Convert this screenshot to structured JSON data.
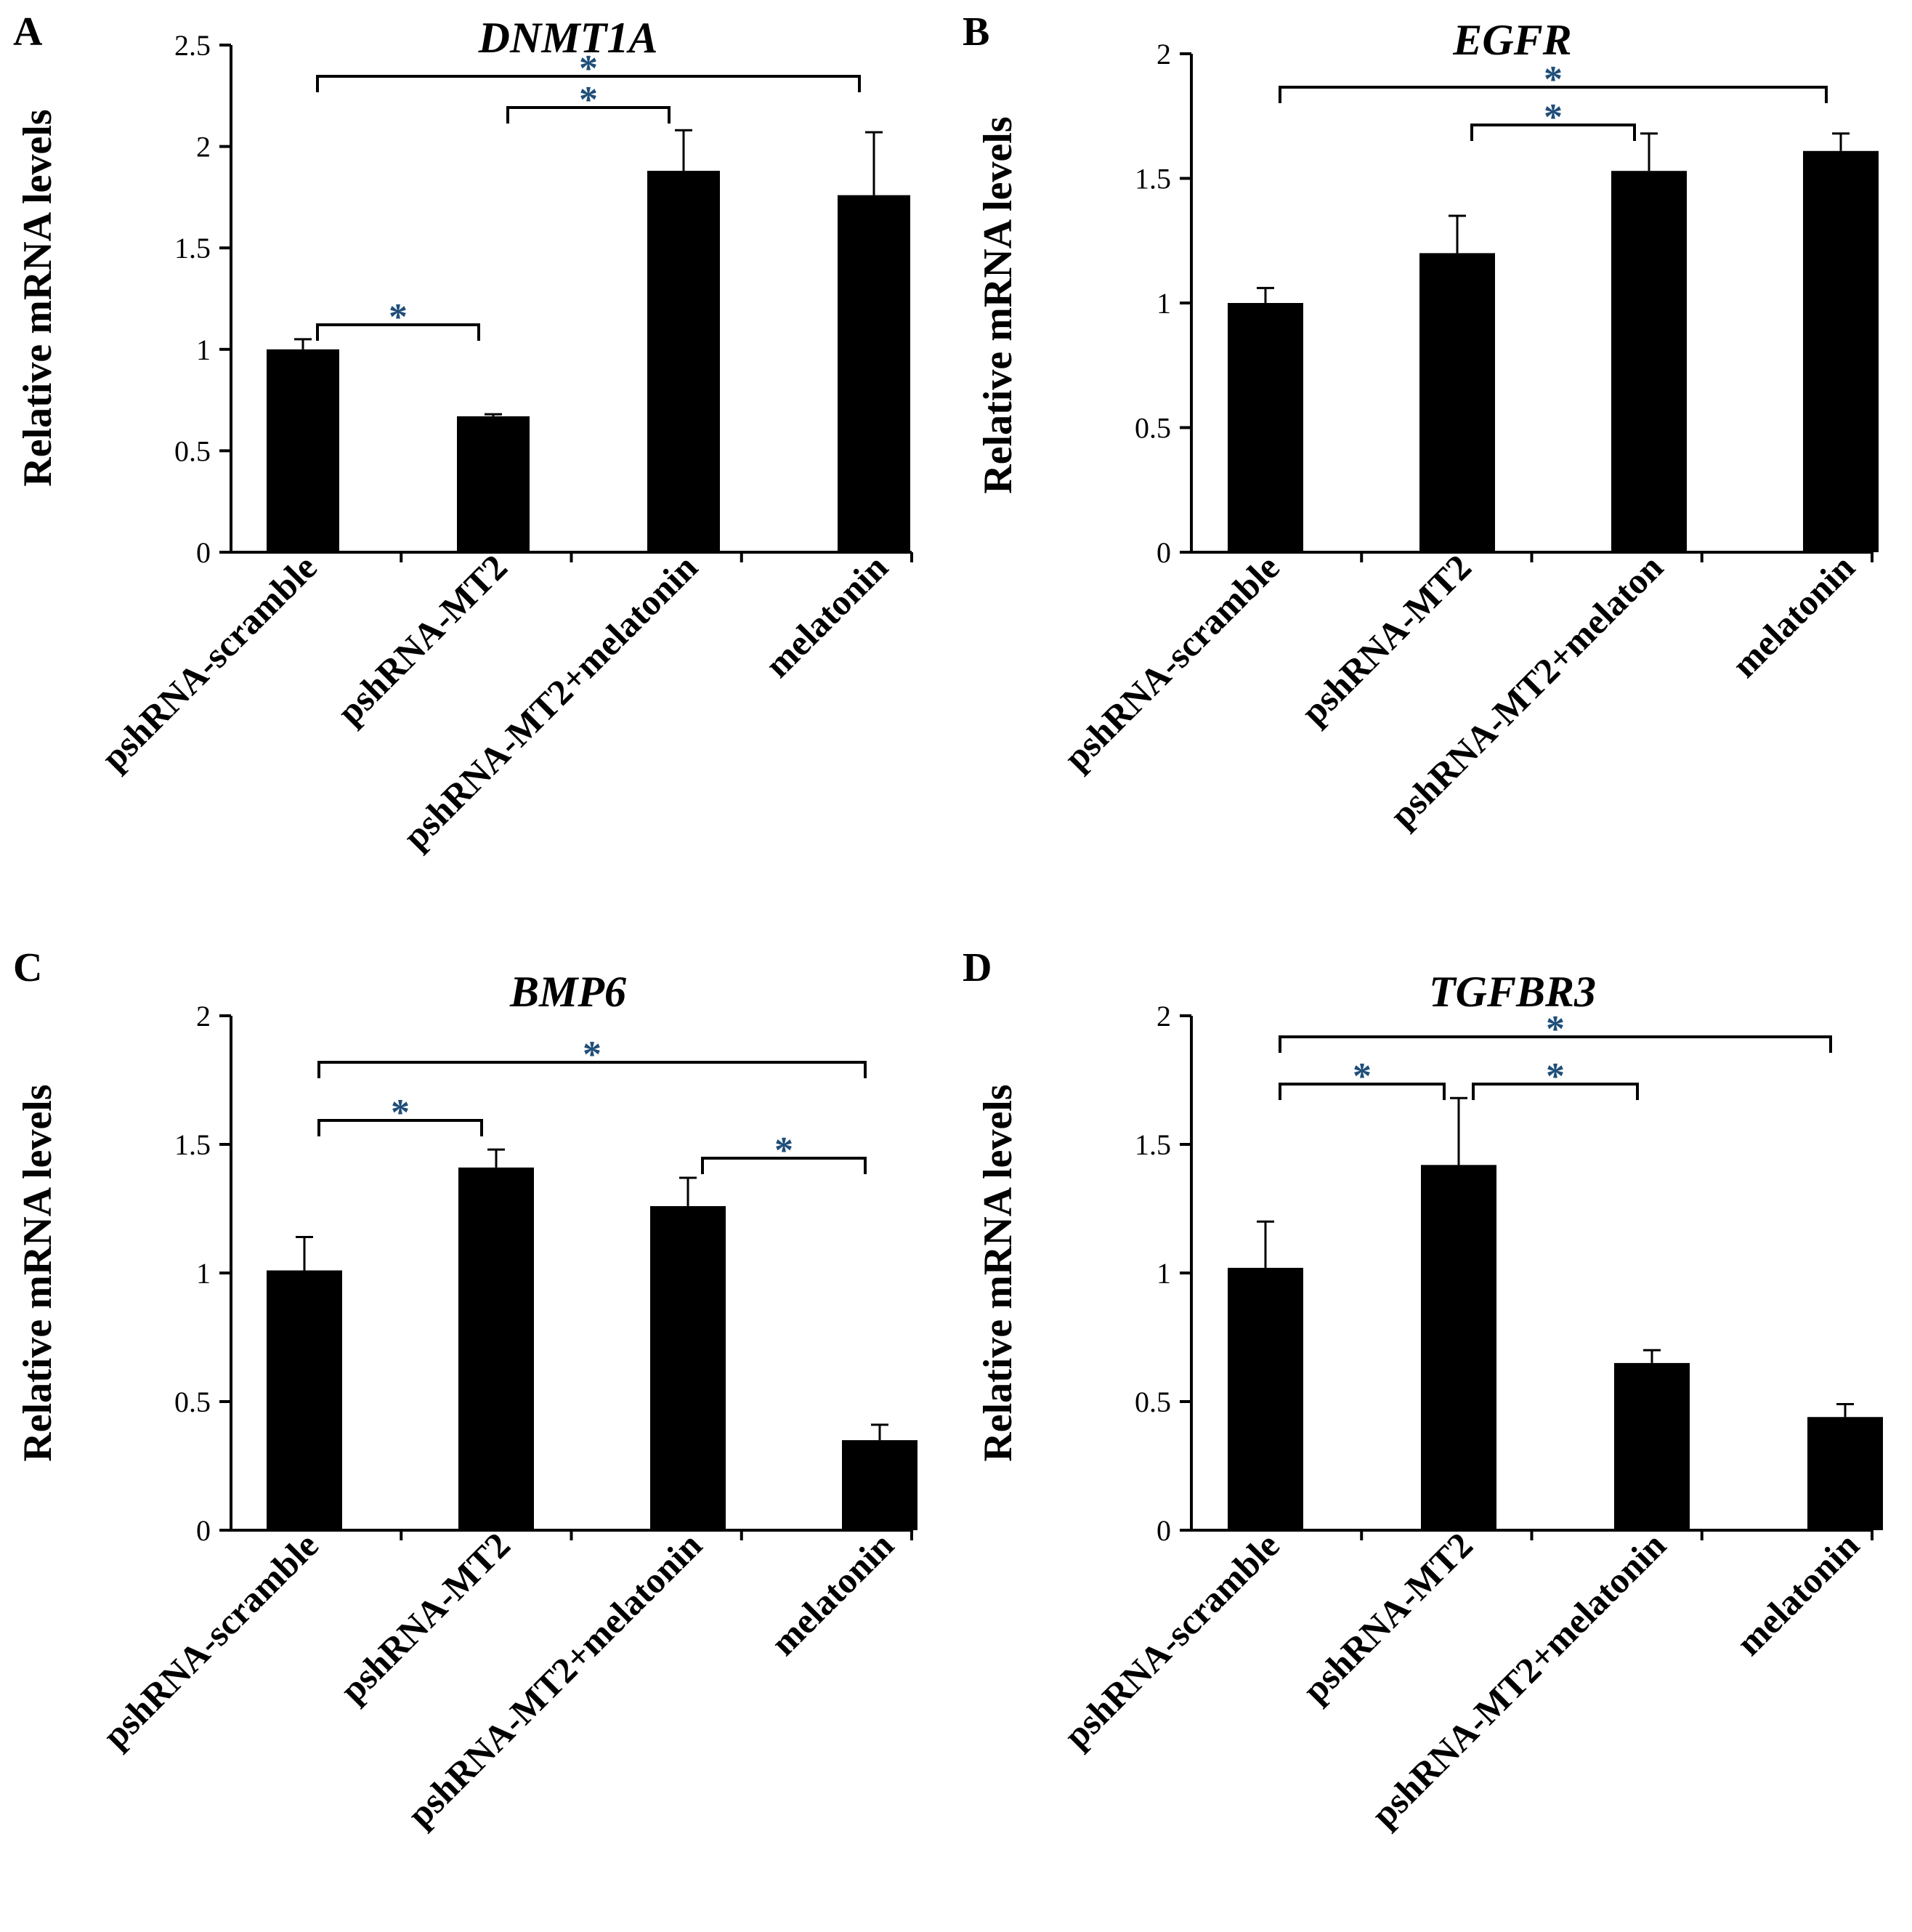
{
  "chart_data": [
    {
      "type": "bar",
      "panel": "A",
      "title": "DNMT1A",
      "ylabel": "Relative mRNA levels",
      "xlabel": "",
      "categories": [
        "pshRNA-scramble",
        "pshRNA-MT2",
        "pshRNA-MT2+melatonin",
        "melatonin"
      ],
      "values": [
        1.0,
        0.67,
        1.88,
        1.76
      ],
      "errors": [
        0.05,
        0.01,
        0.2,
        0.31
      ],
      "ylim": [
        0,
        2.5
      ],
      "yticks": [
        0,
        0.5,
        1,
        1.5,
        2,
        2.5
      ],
      "ytick_labels": [
        "0",
        "0.5",
        "1",
        "1.5",
        "2",
        "2.5"
      ],
      "significance": [
        {
          "from": 0,
          "to": 1,
          "label": "*"
        },
        {
          "from": 1,
          "to": 2,
          "label": "*"
        },
        {
          "from": 0,
          "to": 3,
          "label": "*"
        }
      ]
    },
    {
      "type": "bar",
      "panel": "B",
      "title": "EGFR",
      "ylabel": "Relative mRNA levels",
      "xlabel": "",
      "categories": [
        "pshRNA-scramble",
        "pshRNA-MT2",
        "pshRNA-MT2+melaton",
        "melatonin"
      ],
      "values": [
        1.0,
        1.2,
        1.53,
        1.61
      ],
      "errors": [
        0.06,
        0.15,
        0.15,
        0.07
      ],
      "ylim": [
        0,
        2
      ],
      "yticks": [
        0,
        0.5,
        1,
        1.5,
        2
      ],
      "ytick_labels": [
        "0",
        "0.5",
        "1",
        "1.5",
        "2"
      ],
      "significance": [
        {
          "from": 1,
          "to": 2,
          "label": "*"
        },
        {
          "from": 0,
          "to": 3,
          "label": "*"
        }
      ]
    },
    {
      "type": "bar",
      "panel": "C",
      "title": "BMP6",
      "ylabel": "Relative mRNA levels",
      "xlabel": "",
      "categories": [
        "pshRNA-scramble",
        "pshRNA-MT2",
        "pshRNA-MT2+melatonin",
        "melatonin"
      ],
      "values": [
        1.01,
        1.41,
        1.26,
        0.35
      ],
      "errors": [
        0.13,
        0.07,
        0.11,
        0.06
      ],
      "ylim": [
        0,
        2
      ],
      "yticks": [
        0,
        0.5,
        1,
        1.5,
        2
      ],
      "ytick_labels": [
        "0",
        "0.5",
        "1",
        "1.5",
        "2"
      ],
      "significance": [
        {
          "from": 0,
          "to": 1,
          "label": "*"
        },
        {
          "from": 2,
          "to": 3,
          "label": "*"
        },
        {
          "from": 0,
          "to": 3,
          "label": "*"
        }
      ]
    },
    {
      "type": "bar",
      "panel": "D",
      "title": "TGFBR3",
      "ylabel": "Relative mRNA levels",
      "xlabel": "",
      "categories": [
        "pshRNA-scramble",
        "pshRNA-MT2",
        "pshRNA-MT2+melatonin",
        "melatonin"
      ],
      "values": [
        1.02,
        1.42,
        0.65,
        0.44
      ],
      "errors": [
        0.18,
        0.26,
        0.05,
        0.05
      ],
      "ylim": [
        0,
        2
      ],
      "yticks": [
        0,
        0.5,
        1,
        1.5,
        2
      ],
      "ytick_labels": [
        "0",
        "0.5",
        "1",
        "1.5",
        "2"
      ],
      "significance": [
        {
          "from": 0,
          "to": 1,
          "label": "*"
        },
        {
          "from": 1,
          "to": 2,
          "label": "*"
        },
        {
          "from": 0,
          "to": 3,
          "label": "*"
        }
      ]
    }
  ]
}
